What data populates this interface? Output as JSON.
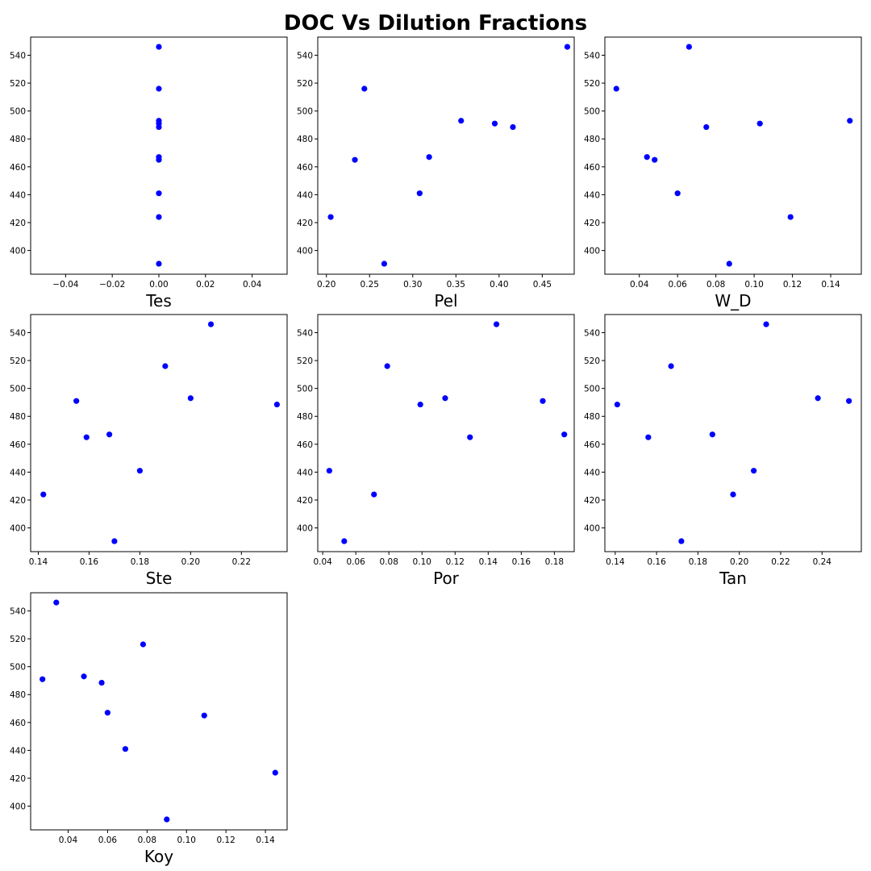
{
  "title": "DOC Vs Dilution Fractions",
  "marker_color": "#0000ff",
  "chart_data": [
    {
      "type": "scatter",
      "xlabel": "Tes",
      "ylabel": "",
      "xlim": [
        -0.055,
        0.055
      ],
      "ylim": [
        383,
        553
      ],
      "xticks": [
        -0.04,
        -0.02,
        0.0,
        0.02,
        0.04
      ],
      "xtick_labels": [
        "−0.04",
        "−0.02",
        "0.00",
        "0.02",
        "0.04"
      ],
      "yticks": [
        400,
        420,
        440,
        460,
        480,
        500,
        520,
        540
      ],
      "ytick_labels": [
        "400",
        "420",
        "440",
        "460",
        "480",
        "500",
        "520",
        "540"
      ],
      "x": [
        0,
        0,
        0,
        0,
        0,
        0,
        0,
        0,
        0,
        0
      ],
      "y": [
        546,
        516,
        493,
        491,
        488.5,
        467,
        465,
        441,
        424,
        390.5
      ]
    },
    {
      "type": "scatter",
      "xlabel": "Pel",
      "ylabel": "",
      "xlim": [
        0.19,
        0.487
      ],
      "ylim": [
        383,
        553
      ],
      "xticks": [
        0.2,
        0.25,
        0.3,
        0.35,
        0.4,
        0.45
      ],
      "xtick_labels": [
        "0.20",
        "0.25",
        "0.30",
        "0.35",
        "0.40",
        "0.45"
      ],
      "yticks": [
        400,
        420,
        440,
        460,
        480,
        500,
        520,
        540
      ],
      "ytick_labels": [
        "400",
        "420",
        "440",
        "460",
        "480",
        "500",
        "520",
        "540"
      ],
      "x": [
        0.205,
        0.233,
        0.244,
        0.267,
        0.308,
        0.319,
        0.356,
        0.395,
        0.416,
        0.479
      ],
      "y": [
        424,
        465,
        516,
        390.5,
        441,
        467,
        493,
        491,
        488.5,
        546
      ]
    },
    {
      "type": "scatter",
      "xlabel": "W_D",
      "ylabel": "",
      "xlim": [
        0.022,
        0.156
      ],
      "ylim": [
        383,
        553
      ],
      "xticks": [
        0.04,
        0.06,
        0.08,
        0.1,
        0.12,
        0.14
      ],
      "xtick_labels": [
        "0.04",
        "0.06",
        "0.08",
        "0.10",
        "0.12",
        "0.14"
      ],
      "yticks": [
        400,
        420,
        440,
        460,
        480,
        500,
        520,
        540
      ],
      "ytick_labels": [
        "400",
        "420",
        "440",
        "460",
        "480",
        "500",
        "520",
        "540"
      ],
      "x": [
        0.028,
        0.044,
        0.048,
        0.06,
        0.066,
        0.075,
        0.087,
        0.103,
        0.119,
        0.15
      ],
      "y": [
        516,
        467,
        465,
        441,
        546,
        488.5,
        390.5,
        491,
        424,
        493
      ]
    },
    {
      "type": "scatter",
      "xlabel": "Ste",
      "ylabel": "",
      "xlim": [
        0.137,
        0.238
      ],
      "ylim": [
        383,
        553
      ],
      "xticks": [
        0.14,
        0.16,
        0.18,
        0.2,
        0.22
      ],
      "xtick_labels": [
        "0.14",
        "0.16",
        "0.18",
        "0.20",
        "0.22"
      ],
      "yticks": [
        400,
        420,
        440,
        460,
        480,
        500,
        520,
        540
      ],
      "ytick_labels": [
        "400",
        "420",
        "440",
        "460",
        "480",
        "500",
        "520",
        "540"
      ],
      "x": [
        0.142,
        0.155,
        0.159,
        0.168,
        0.17,
        0.18,
        0.19,
        0.2,
        0.208,
        0.234
      ],
      "y": [
        424,
        491,
        465,
        467,
        390.5,
        441,
        516,
        493,
        546,
        488.5
      ]
    },
    {
      "type": "scatter",
      "xlabel": "Por",
      "ylabel": "",
      "xlim": [
        0.037,
        0.192
      ],
      "ylim": [
        383,
        553
      ],
      "xticks": [
        0.04,
        0.06,
        0.08,
        0.1,
        0.12,
        0.14,
        0.16,
        0.18
      ],
      "xtick_labels": [
        "0.04",
        "0.06",
        "0.08",
        "0.10",
        "0.12",
        "0.14",
        "0.16",
        "0.18"
      ],
      "yticks": [
        400,
        420,
        440,
        460,
        480,
        500,
        520,
        540
      ],
      "ytick_labels": [
        "400",
        "420",
        "440",
        "460",
        "480",
        "500",
        "520",
        "540"
      ],
      "x": [
        0.044,
        0.053,
        0.071,
        0.079,
        0.099,
        0.114,
        0.129,
        0.145,
        0.173,
        0.186
      ],
      "y": [
        441,
        390.5,
        424,
        516,
        488.5,
        493,
        465,
        546,
        491,
        467
      ]
    },
    {
      "type": "scatter",
      "xlabel": "Tan",
      "ylabel": "",
      "xlim": [
        0.135,
        0.259
      ],
      "ylim": [
        383,
        553
      ],
      "xticks": [
        0.14,
        0.16,
        0.18,
        0.2,
        0.22,
        0.24
      ],
      "xtick_labels": [
        "0.14",
        "0.16",
        "0.18",
        "0.20",
        "0.22",
        "0.24"
      ],
      "yticks": [
        400,
        420,
        440,
        460,
        480,
        500,
        520,
        540
      ],
      "ytick_labels": [
        "400",
        "420",
        "440",
        "460",
        "480",
        "500",
        "520",
        "540"
      ],
      "x": [
        0.141,
        0.156,
        0.167,
        0.172,
        0.187,
        0.197,
        0.207,
        0.213,
        0.238,
        0.253
      ],
      "y": [
        488.5,
        465,
        516,
        390.5,
        467,
        424,
        441,
        546,
        493,
        491
      ]
    },
    {
      "type": "scatter",
      "xlabel": "Koy",
      "ylabel": "",
      "xlim": [
        0.021,
        0.151
      ],
      "ylim": [
        383,
        553
      ],
      "xticks": [
        0.04,
        0.06,
        0.08,
        0.1,
        0.12,
        0.14
      ],
      "xtick_labels": [
        "0.04",
        "0.06",
        "0.08",
        "0.10",
        "0.12",
        "0.14"
      ],
      "yticks": [
        400,
        420,
        440,
        460,
        480,
        500,
        520,
        540
      ],
      "ytick_labels": [
        "400",
        "420",
        "440",
        "460",
        "480",
        "500",
        "520",
        "540"
      ],
      "x": [
        0.027,
        0.034,
        0.048,
        0.057,
        0.06,
        0.069,
        0.078,
        0.09,
        0.109,
        0.145
      ],
      "y": [
        491,
        546,
        493,
        488.5,
        467,
        441,
        516,
        390.5,
        465,
        424
      ]
    }
  ]
}
